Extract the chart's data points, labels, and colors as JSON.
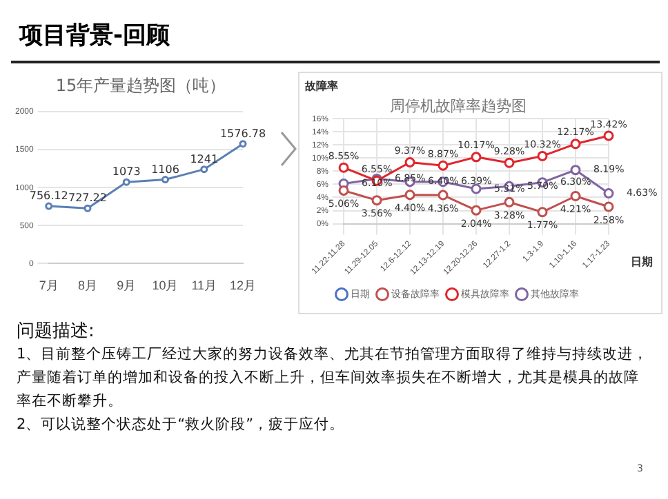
{
  "chart_data": [
    {
      "type": "other",
      "title": "项目背景-回顾"
    },
    {
      "type": "line",
      "title": "15年产量趋势图（吨）",
      "categories": [
        "7月",
        "8月",
        "9月",
        "10月",
        "11月",
        "12月"
      ],
      "series": [
        {
          "color": "#5b7fb5",
          "values": [
            756.12,
            727.22,
            1073,
            1106,
            1241,
            1576.78
          ]
        }
      ],
      "ylim": [
        0,
        2000
      ],
      "yticks": [
        0,
        500,
        1000,
        1500,
        2000
      ],
      "grid": "y",
      "marker": "circle",
      "data_labels": true,
      "legend": false
    },
    {
      "type": "line",
      "title": "周停机故障率趋势图",
      "ylabel": "故障率",
      "xlabel": "日期",
      "categories": [
        "11.22-11.28",
        "11.29-12.05",
        "12.6-12.12",
        "12.13-12.19",
        "12.20-12.26",
        "12.27-1.2",
        "1.3-1.9",
        "1.10-1.16",
        "1.17-1.23"
      ],
      "series": [
        {
          "name": "日期",
          "color": "#4a72c4",
          "values": [
            null,
            null,
            null,
            null,
            null,
            null,
            null,
            null,
            null
          ]
        },
        {
          "name": "设备故障率",
          "color": "#c0504d",
          "values": [
            5.06,
            3.56,
            4.4,
            4.36,
            2.04,
            3.28,
            1.77,
            4.21,
            2.58
          ],
          "value_labels": [
            "5.06%",
            "3.56%",
            "4.40%",
            "4.36%",
            "2.04%",
            "3.28%",
            "1.77%",
            "4.21%",
            "2.58%"
          ]
        },
        {
          "name": "模具故障率",
          "color": "#e0262c",
          "values": [
            8.55,
            6.55,
            9.37,
            8.87,
            10.17,
            9.28,
            10.32,
            12.17,
            13.42
          ],
          "value_labels": [
            "8.55%",
            "6.55%",
            "9.37%",
            "8.87%",
            "10.17%",
            "9.28%",
            "10.32%",
            "12.17%",
            "13.42%"
          ]
        },
        {
          "name": "其他故障率",
          "color": "#8064a2",
          "values": [
            6.1,
            6.85,
            6.4,
            6.39,
            5.31,
            5.7,
            6.3,
            8.19,
            4.63
          ],
          "value_labels": [
            "6.10%",
            "6.85%",
            "6.40%",
            "6.39%",
            "5.31%",
            "5.70%",
            "6.30%",
            "8.19%",
            "4.63%"
          ]
        }
      ],
      "ylim": [
        0,
        16
      ],
      "yticks": [
        {
          "value": 0,
          "label": "0%"
        },
        {
          "value": 2,
          "label": "2%"
        },
        {
          "value": 4,
          "label": "4%"
        },
        {
          "value": 6,
          "label": "6%"
        },
        {
          "value": 8,
          "label": "8%"
        },
        {
          "value": 10,
          "label": "10%"
        },
        {
          "value": 12,
          "label": "12%"
        },
        {
          "value": 14,
          "label": "14%"
        },
        {
          "value": 16,
          "label": "16%"
        }
      ],
      "grid": true,
      "marker": "circle",
      "legend": "bottom"
    },
    {
      "type": "other",
      "title": "问题描述:",
      "annotations": [
        "1、目前整个压铸工厂经过大家的努力设备效率、尤其在节拍管理方面取得了维持与持续改进，产量随着订单的增加和设备的投入不断上升，但车间效率损失在不断增大，尤其是模具的故障率在不断攀升。",
        "2、可以说整个状态处于“救火阶段”，疲于应付。",
        "3"
      ]
    }
  ]
}
